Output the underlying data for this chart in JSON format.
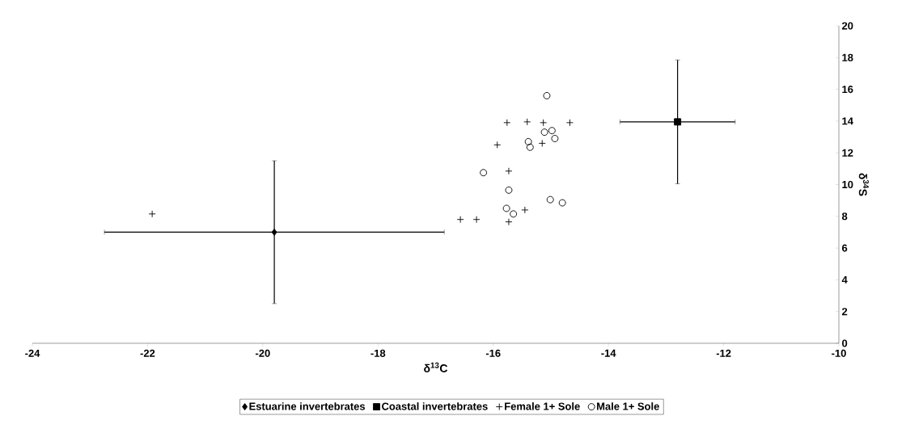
{
  "chart_data": {
    "type": "scatter",
    "xlabel": "δ$^{13}$C",
    "ylabel": "δ$^{34}$S",
    "xlim": [
      -24,
      -10
    ],
    "ylim": [
      0,
      20
    ],
    "xticks": [
      -24,
      -22,
      -20,
      -18,
      -16,
      -14,
      -12,
      -10
    ],
    "yticks": [
      0,
      2,
      4,
      6,
      8,
      10,
      12,
      14,
      16,
      18,
      20
    ],
    "grid": false,
    "legend": "bottom",
    "series": [
      {
        "name": "Estuarine invertebrates",
        "color": "#000000",
        "marker": "diamond",
        "x": [
          -19.8
        ],
        "values": [
          7.0
        ],
        "errors": [
          4.5
        ],
        "xerrors": [
          2.95
        ]
      },
      {
        "name": "Coastal invertebrates",
        "color": "#000000",
        "marker": "square",
        "x": [
          -12.8
        ],
        "values": [
          13.95
        ],
        "errors": [
          3.9
        ],
        "xerrors": [
          1.0
        ]
      },
      {
        "name": "Female 1+ Sole",
        "color": "#000000",
        "marker": "cross",
        "x": [
          -15.76,
          -15.41,
          -15.13,
          -14.67,
          -15.93,
          -15.15,
          -15.73,
          -15.45,
          -15.73,
          -16.57,
          -16.29,
          -21.92
        ],
        "values": [
          13.9,
          13.95,
          13.9,
          13.9,
          12.5,
          12.6,
          10.85,
          8.4,
          7.65,
          7.8,
          7.8,
          8.15
        ]
      },
      {
        "name": "Male 1+ Sole",
        "color": "#000000",
        "marker": "circle",
        "x": [
          -15.07,
          -15.11,
          -14.98,
          -14.93,
          -15.39,
          -15.36,
          -16.17,
          -15.73,
          -15.77,
          -15.65,
          -15.01,
          -14.8
        ],
        "values": [
          15.6,
          13.3,
          13.4,
          12.9,
          12.7,
          12.35,
          10.75,
          9.65,
          8.5,
          8.15,
          9.05,
          8.85
        ]
      }
    ]
  }
}
